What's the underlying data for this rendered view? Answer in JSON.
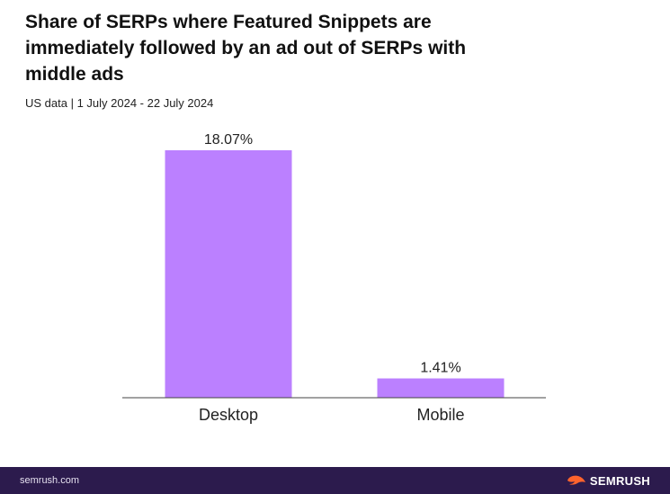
{
  "header": {
    "title": "Share of SERPs where Featured Snippets are immediately followed by an ad out of SERPs with middle ads",
    "subtitle": "US data | 1 July 2024 - 22 July 2024"
  },
  "chart_data": {
    "type": "bar",
    "categories": [
      "Desktop",
      "Mobile"
    ],
    "values": [
      18.07,
      1.41
    ],
    "data_labels": [
      "18.07%",
      "1.41%"
    ],
    "title": "Share of SERPs where Featured Snippets are immediately followed by an ad out of SERPs with middle ads",
    "subtitle": "US data | 1 July 2024 - 22 July 2024",
    "xlabel": "",
    "ylabel": "",
    "ylim": [
      0,
      18.07
    ],
    "grid": false,
    "bar_color": "#bb80ff"
  },
  "footer": {
    "url": "semrush.com",
    "brand": "SEMRUSH",
    "background": "#2c1b4d",
    "logo_color": "#ff642d"
  }
}
